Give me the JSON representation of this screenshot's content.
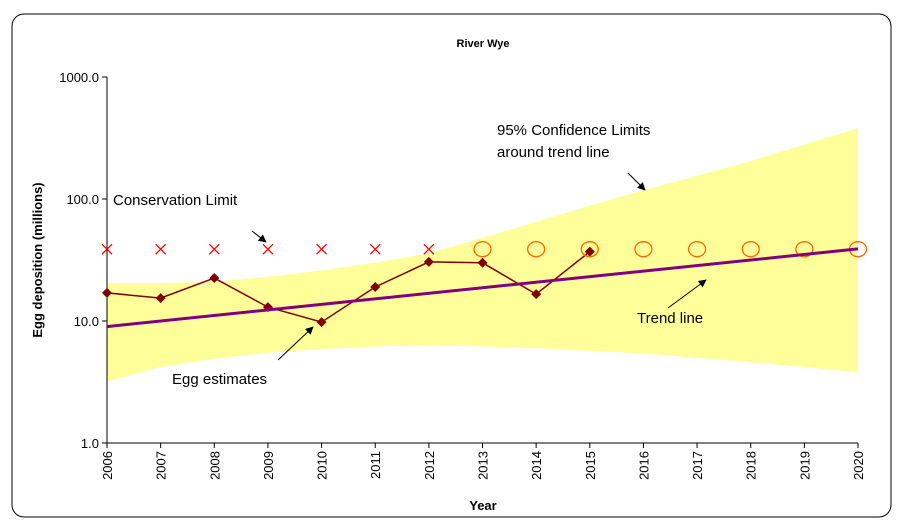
{
  "chart_data": {
    "type": "line",
    "title": "River Wye",
    "x_label": "Year",
    "y_label": "Egg deposition (millions)",
    "log_scale": true,
    "x": [
      2006,
      2007,
      2008,
      2009,
      2010,
      2011,
      2012,
      2013,
      2014,
      2015,
      2016,
      2017,
      2018,
      2019,
      2020
    ],
    "xlim": [
      2006,
      2020
    ],
    "xticks": [
      2006,
      2007,
      2008,
      2009,
      2010,
      2011,
      2012,
      2013,
      2014,
      2015,
      2016,
      2017,
      2018,
      2019,
      2020
    ],
    "ylim": [
      1,
      1000
    ],
    "yticks": [
      {
        "value": 1,
        "label": "1.0"
      },
      {
        "value": 10,
        "label": "10.0"
      },
      {
        "value": 100,
        "label": "100.0"
      },
      {
        "value": 1000,
        "label": "1000.0"
      }
    ],
    "band": {
      "label": [
        "95% Confidence Limits",
        "around trend line"
      ],
      "color": "#ffff99",
      "upper": [
        20.5,
        20.5,
        21,
        23,
        26,
        30,
        36,
        48,
        65,
        88,
        118,
        155,
        205,
        280,
        380
      ],
      "lower": [
        3.2,
        4.2,
        4.9,
        5.5,
        5.9,
        6.2,
        6.3,
        6.2,
        6.0,
        5.7,
        5.4,
        5.0,
        4.6,
        4.2,
        3.8
      ]
    },
    "series": [
      {
        "name": "Egg estimates",
        "color": "#800000",
        "marker": "diamond",
        "values": [
          17,
          15.4,
          22.5,
          13,
          9.8,
          19,
          30.5,
          30,
          16.6,
          37,
          null,
          null,
          null,
          null,
          null
        ]
      },
      {
        "name": "Conservation Limit",
        "color": "#ff0000",
        "marker": "x",
        "values": [
          38.8,
          38.8,
          38.8,
          38.8,
          38.8,
          38.8,
          38.8,
          null,
          null,
          null,
          null,
          null,
          null,
          null,
          null
        ]
      },
      {
        "color": "#ff6600",
        "marker": "circle",
        "values": [
          null,
          null,
          null,
          null,
          null,
          null,
          null,
          38.8,
          38.8,
          38.8,
          38.8,
          38.8,
          38.8,
          38.8,
          38.8
        ]
      },
      {
        "name": "Trend line",
        "color": "#800080",
        "marker": "none",
        "x": [
          2006,
          2020
        ],
        "values": [
          9.0,
          39
        ]
      }
    ]
  }
}
